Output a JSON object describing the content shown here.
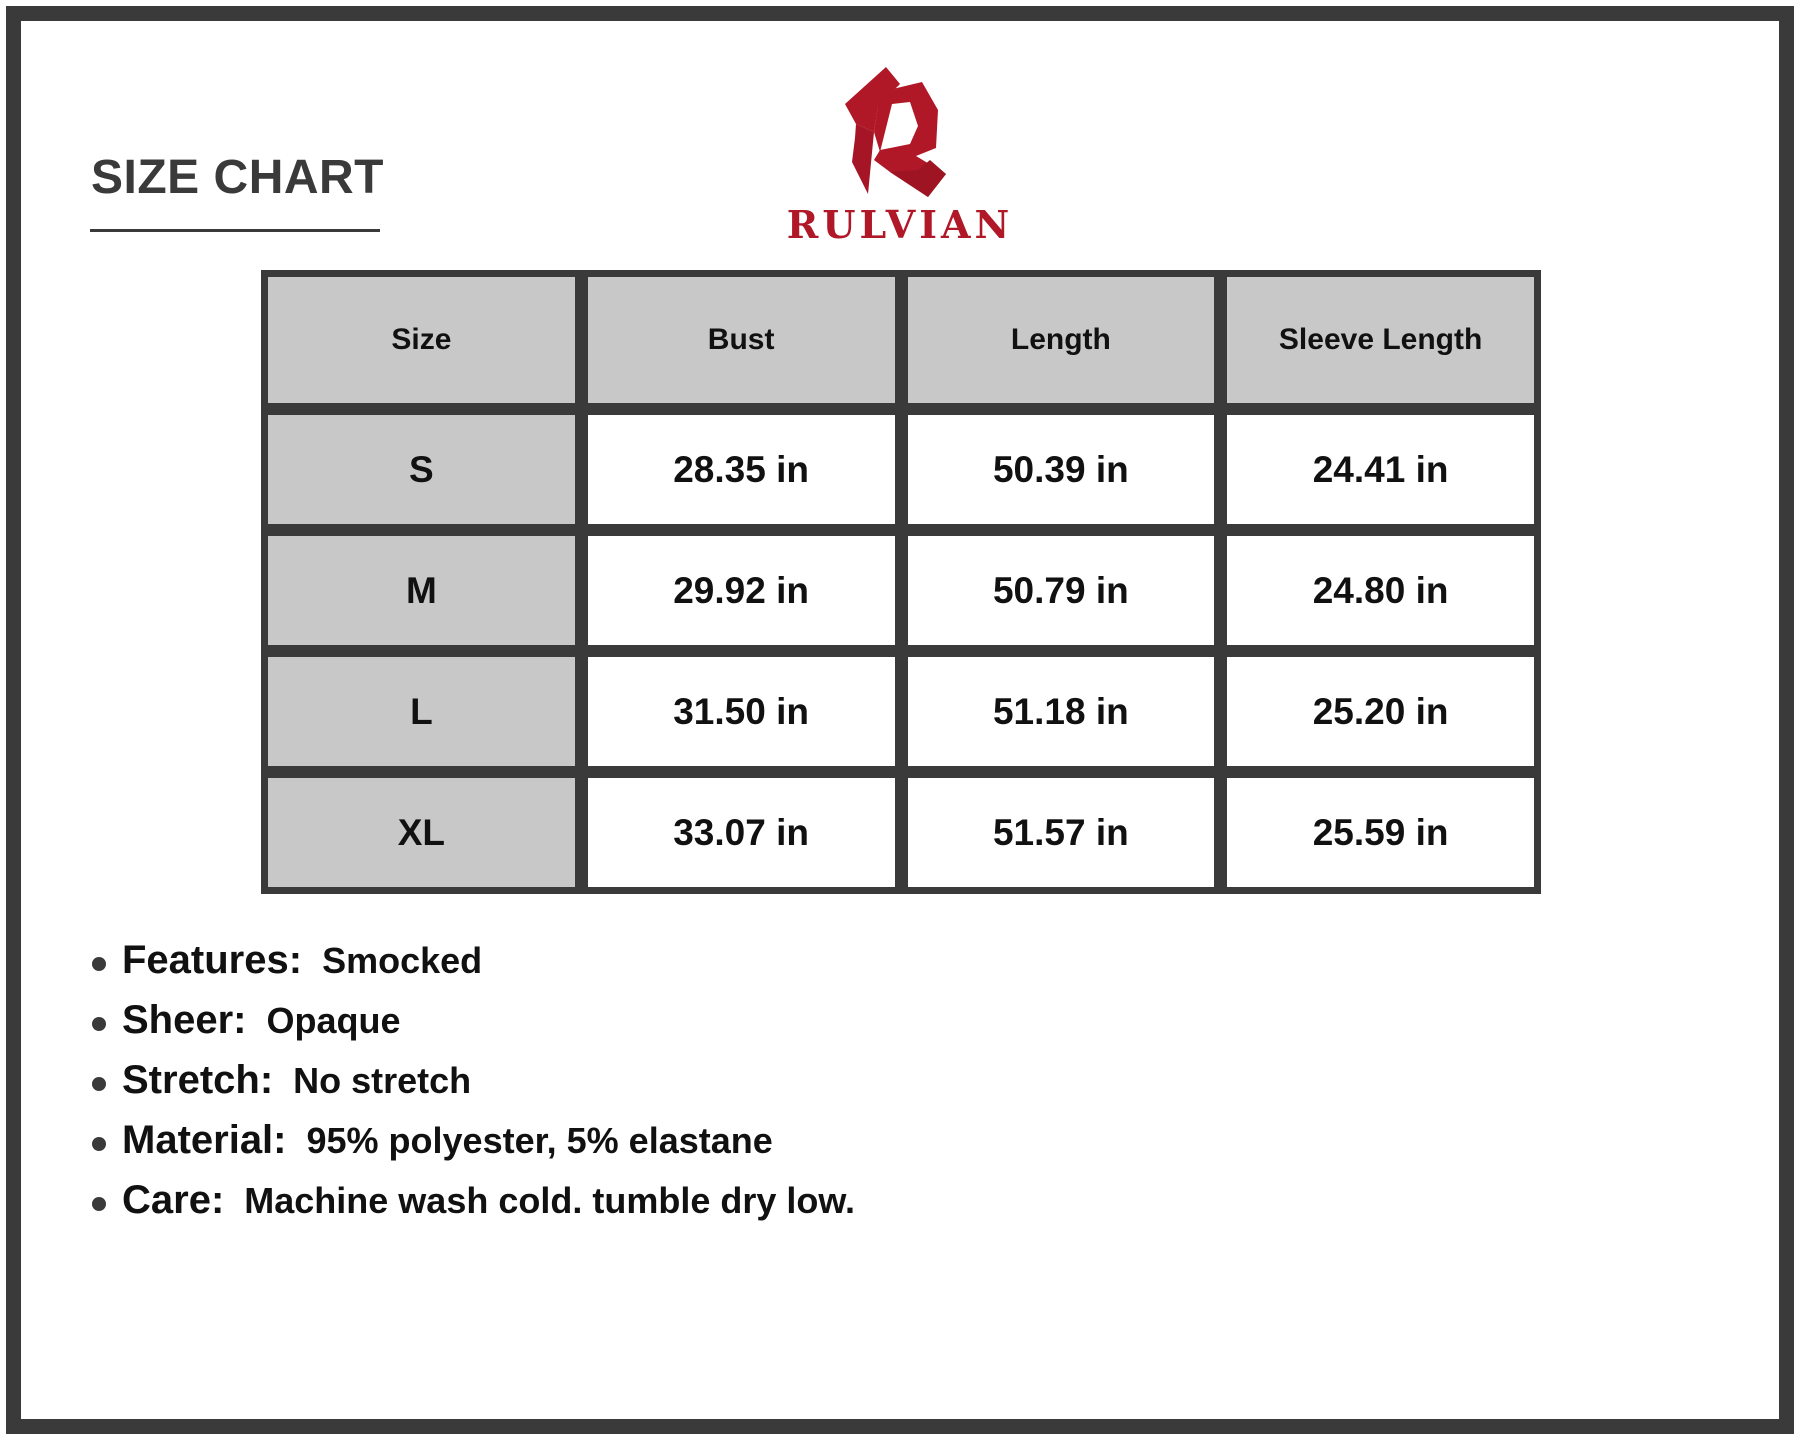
{
  "header": {
    "title": "SIZE CHART",
    "brand": "RULVIAN",
    "brand_color": "#b01828",
    "logo_icon": "stylized-r-logo"
  },
  "table": {
    "columns": [
      "Size",
      "Bust",
      "Length",
      "Sleeve Length"
    ],
    "rows": [
      [
        "S",
        "28.35 in",
        "50.39 in",
        "24.41 in"
      ],
      [
        "M",
        "29.92 in",
        "50.79 in",
        "24.80 in"
      ],
      [
        "L",
        "31.50 in",
        "51.18 in",
        "25.20 in"
      ],
      [
        "XL",
        "33.07 in",
        "51.57 in",
        "25.59 in"
      ]
    ]
  },
  "specs": [
    {
      "label": "Features:",
      "value": "Smocked"
    },
    {
      "label": "Sheer:",
      "value": "Opaque"
    },
    {
      "label": "Stretch:",
      "value": "No stretch"
    },
    {
      "label": "Material:",
      "value": "95% polyester, 5% elastane"
    },
    {
      "label": "Care:",
      "value": "Machine wash cold. tumble dry low."
    }
  ]
}
